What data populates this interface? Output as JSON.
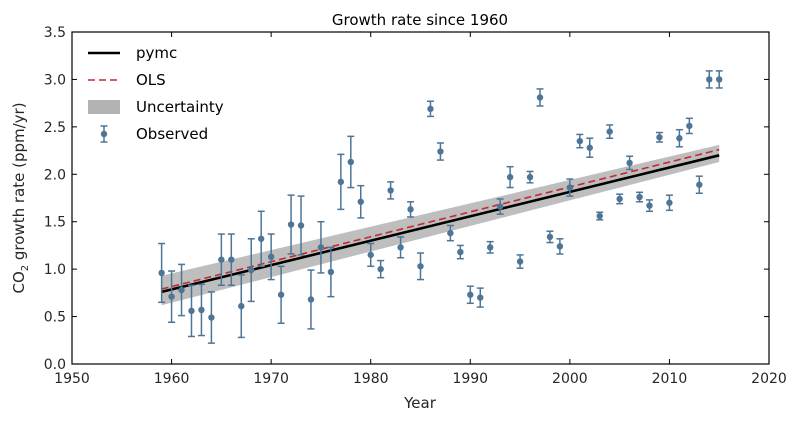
{
  "chart_data": {
    "type": "scatter",
    "title": "Growth rate since 1960",
    "xlabel": "Year",
    "ylabel_prefix": "CO",
    "ylabel_sub": "2",
    "ylabel_suffix": " growth rate (ppm/yr)",
    "xlim": [
      1950,
      2020
    ],
    "ylim": [
      0.0,
      3.5
    ],
    "xticks": [
      1950,
      1960,
      1970,
      1980,
      1990,
      2000,
      2010,
      2020
    ],
    "yticks": [
      0.0,
      0.5,
      1.0,
      1.5,
      2.0,
      2.5,
      3.0,
      3.5
    ],
    "ytick_labels": [
      "0.0",
      "0.5",
      "1.0",
      "1.5",
      "2.0",
      "2.5",
      "3.0",
      "3.5"
    ],
    "grid": false,
    "legend_position": "upper-left",
    "colors": {
      "observed": "#4e7596",
      "pymc": "#000000",
      "ols": "#c8282d",
      "uncertainty": "#b3b3b3"
    },
    "series": [
      {
        "name": "Observed",
        "kind": "errorbar",
        "x": [
          1959,
          1960,
          1961,
          1962,
          1963,
          1964,
          1965,
          1966,
          1967,
          1968,
          1969,
          1970,
          1971,
          1972,
          1973,
          1974,
          1975,
          1976,
          1977,
          1978,
          1979,
          1980,
          1981,
          1982,
          1983,
          1984,
          1985,
          1986,
          1987,
          1988,
          1989,
          1990,
          1991,
          1992,
          1993,
          1994,
          1995,
          1996,
          1997,
          1998,
          1999,
          2000,
          2001,
          2002,
          2003,
          2004,
          2005,
          2006,
          2007,
          2008,
          2009,
          2010,
          2011,
          2012,
          2013,
          2014,
          2015
        ],
        "y": [
          0.96,
          0.71,
          0.78,
          0.56,
          0.57,
          0.49,
          1.1,
          1.1,
          0.61,
          0.99,
          1.32,
          1.13,
          0.73,
          1.47,
          1.46,
          0.68,
          1.23,
          0.97,
          1.92,
          2.13,
          1.71,
          1.15,
          1.0,
          1.83,
          1.23,
          1.63,
          1.03,
          2.69,
          2.24,
          1.38,
          1.18,
          0.73,
          0.7,
          1.23,
          1.66,
          1.97,
          1.08,
          1.97,
          2.81,
          1.34,
          1.24,
          1.86,
          2.35,
          2.28,
          1.56,
          2.45,
          1.74,
          2.12,
          1.76,
          1.67,
          2.39,
          1.7,
          2.38,
          2.51,
          1.89,
          3.0,
          3.0
        ],
        "yerr": [
          0.31,
          0.27,
          0.27,
          0.27,
          0.27,
          0.27,
          0.27,
          0.27,
          0.33,
          0.33,
          0.29,
          0.24,
          0.3,
          0.31,
          0.31,
          0.31,
          0.27,
          0.26,
          0.29,
          0.27,
          0.17,
          0.12,
          0.09,
          0.09,
          0.11,
          0.08,
          0.14,
          0.08,
          0.09,
          0.08,
          0.07,
          0.09,
          0.1,
          0.06,
          0.08,
          0.11,
          0.07,
          0.06,
          0.09,
          0.06,
          0.08,
          0.09,
          0.07,
          0.1,
          0.04,
          0.07,
          0.05,
          0.07,
          0.05,
          0.06,
          0.05,
          0.08,
          0.09,
          0.08,
          0.09,
          0.09,
          0.09
        ]
      },
      {
        "name": "pymc",
        "kind": "line",
        "x": [
          1959,
          2015
        ],
        "y": [
          0.76,
          2.2
        ]
      },
      {
        "name": "OLS",
        "kind": "dashed-line",
        "x": [
          1959,
          2015
        ],
        "y": [
          0.79,
          2.26
        ]
      },
      {
        "name": "Uncertainty",
        "kind": "band",
        "x": [
          1959,
          2015
        ],
        "y_low": [
          0.62,
          2.13
        ],
        "y_high": [
          0.93,
          2.31
        ]
      }
    ],
    "legend": [
      "pymc",
      "OLS",
      "Uncertainty",
      "Observed"
    ]
  }
}
